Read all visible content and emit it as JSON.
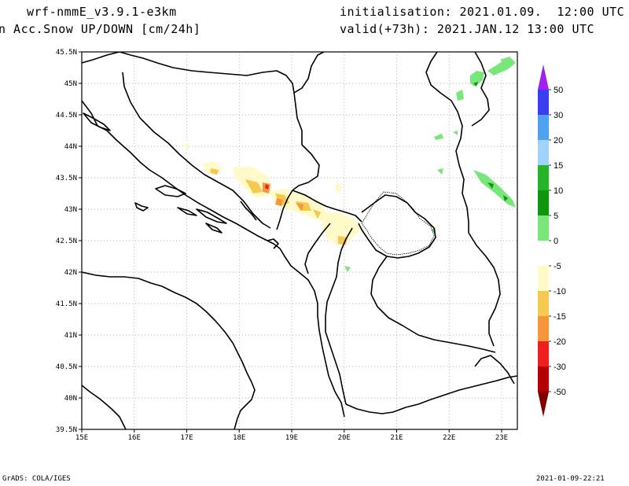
{
  "header": {
    "model": "wrf-nmmE_v3.9.1-e3km",
    "field": "n Acc.Snow UP/DOWN [cm/24h]",
    "init": "initialisation: 2021.01.09.  12:00 UTC",
    "valid": "valid(+73h): 2021.JAN.12 13:00 UTC"
  },
  "footer": {
    "credit": "GrADS: COLA/IGES",
    "timestamp": "2021-01-09-22:21"
  },
  "map": {
    "lon_range": [
      15,
      23.3
    ],
    "lat_range": [
      39.5,
      45.5
    ],
    "lon_ticks": [
      "15E",
      "16E",
      "17E",
      "18E",
      "19E",
      "20E",
      "21E",
      "22E",
      "23E"
    ],
    "lat_ticks": [
      "45.5N",
      "45N",
      "44.5N",
      "44N",
      "43.5N",
      "43N",
      "42.5N",
      "42N",
      "41.5N",
      "41N",
      "40.5N",
      "40N",
      "39.5N"
    ],
    "grid": "dotted"
  },
  "colorbar": {
    "labels": [
      "50",
      "30",
      "20",
      "15",
      "10",
      "5",
      "0",
      "-5",
      "-10",
      "-15",
      "-20",
      "-30",
      "-50"
    ],
    "colors": [
      "#a020f0",
      "#3c3cf0",
      "#50a0f0",
      "#a0d2fa",
      "#28b428",
      "#0f960f",
      "#78e678",
      "#ffffff",
      "#fffac8",
      "#f5c850",
      "#f5963c",
      "#f01e1e",
      "#b40000",
      "#800000"
    ]
  }
}
